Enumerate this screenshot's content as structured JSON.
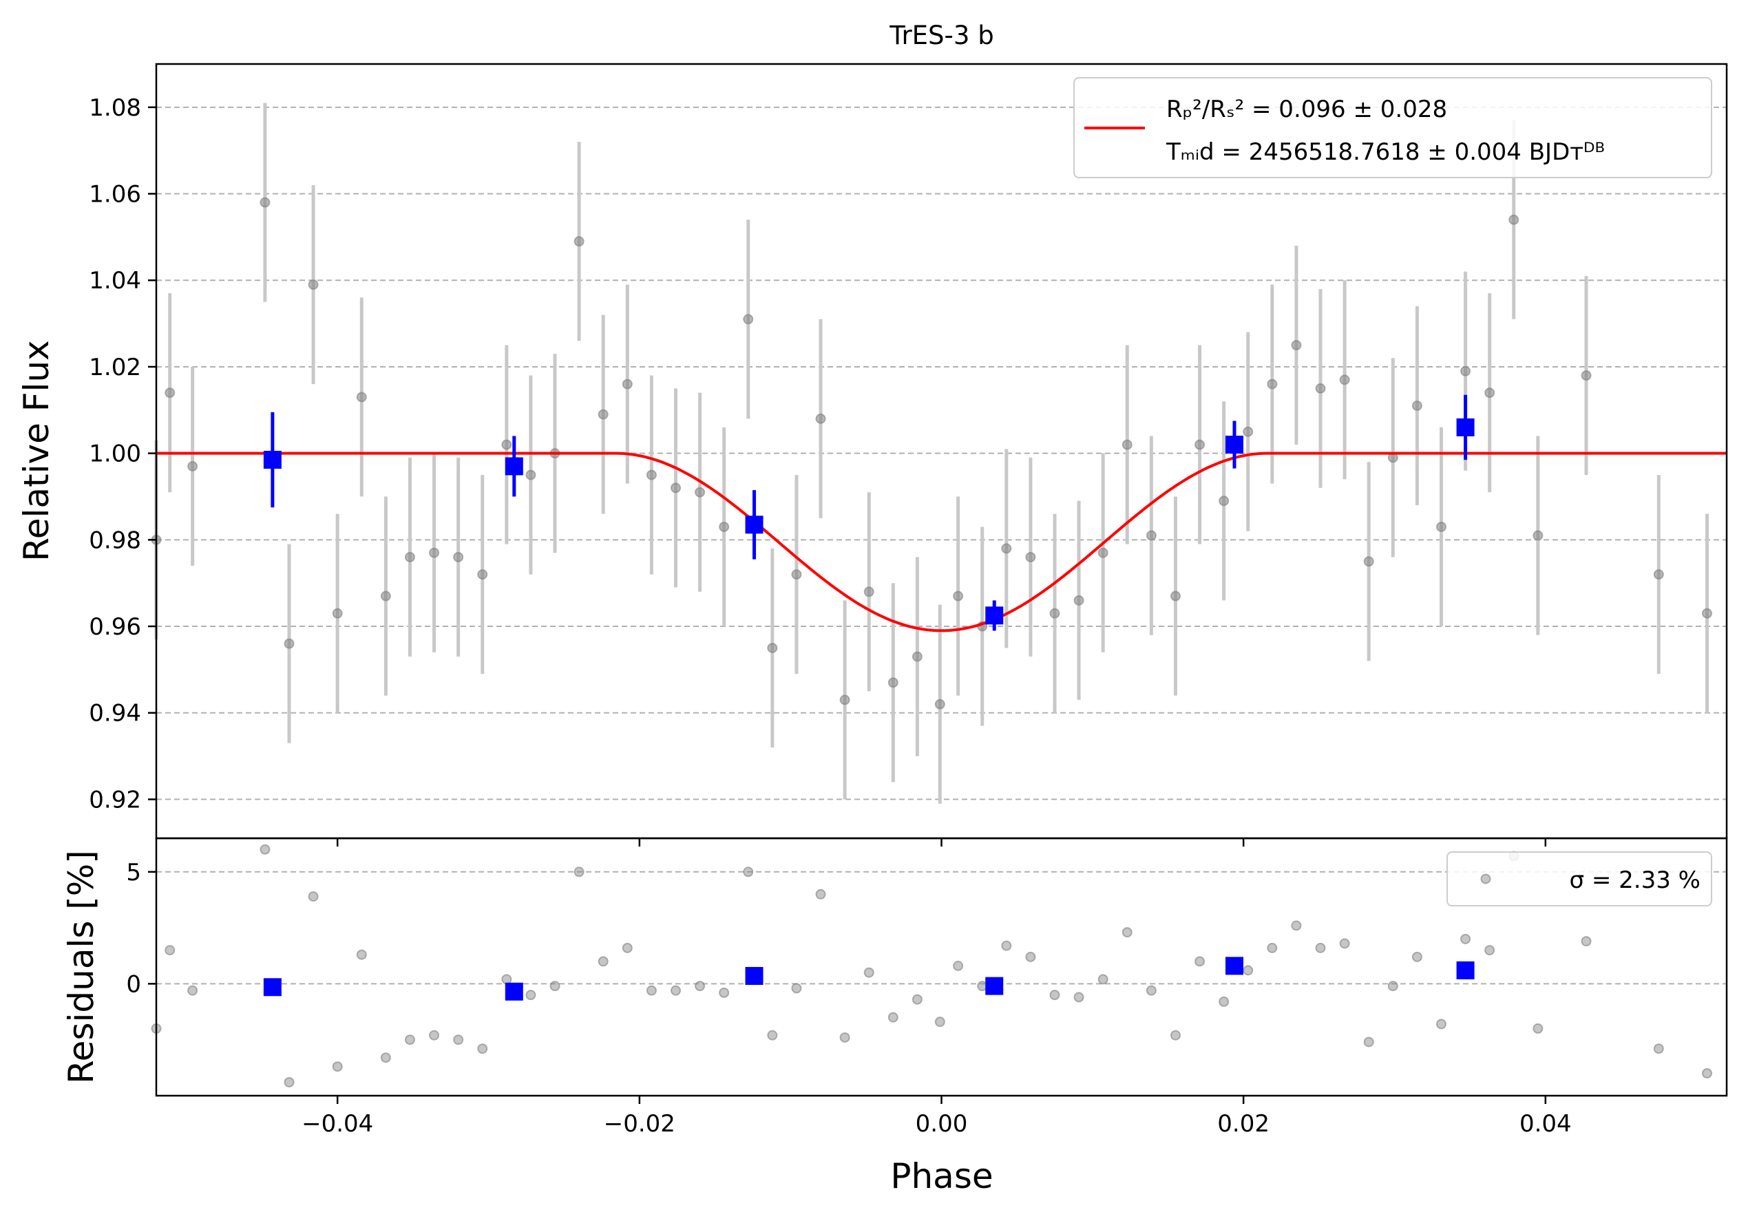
{
  "chart_data": {
    "type": "scatter",
    "title": "TrES-3 b",
    "xlabel": "Phase",
    "grid": "horizontal dashed",
    "xlim": [
      -0.052,
      0.052
    ],
    "x_ticks": [
      -0.04,
      -0.02,
      0.0,
      0.02,
      0.04
    ],
    "x_tick_labels": [
      "−0.04",
      "−0.02",
      "0.00",
      "0.02",
      "0.04"
    ],
    "top_panel": {
      "ylabel": "Relative Flux",
      "ylim": [
        0.911,
        1.09
      ],
      "y_ticks": [
        0.92,
        0.94,
        0.96,
        0.98,
        1.0,
        1.02,
        1.04,
        1.06,
        1.08
      ],
      "y_tick_labels": [
        "0.92",
        "0.94",
        "0.96",
        "0.98",
        "1.00",
        "1.02",
        "1.04",
        "1.06",
        "1.08"
      ],
      "legend": {
        "location": "top-right",
        "line_color": "#ff0000",
        "entry1_label": "Rₚ²/Rₛ² = 0.096 ± 0.028",
        "entry2_label": "Tₘᵢd = 2456518.7618 ± 0.004 BJDᴛᴰᴮ"
      },
      "series": [
        {
          "kind": "raw",
          "color": "#808080",
          "error_color": "#c8c8c8",
          "x": [
            -0.052,
            -0.0511,
            -0.0496,
            -0.0448,
            -0.0432,
            -0.0416,
            -0.04,
            -0.0384,
            -0.0368,
            -0.0352,
            -0.0336,
            -0.032,
            -0.0304,
            -0.0288,
            -0.0272,
            -0.0256,
            -0.024,
            -0.0224,
            -0.0208,
            -0.0192,
            -0.0176,
            -0.016,
            -0.0144,
            -0.0128,
            -0.0112,
            -0.0096,
            -0.008,
            -0.0064,
            -0.0048,
            -0.0032,
            -0.0016,
            -0.0001,
            0.0011,
            0.0027,
            0.0043,
            0.0059,
            0.0075,
            0.0091,
            0.0107,
            0.0123,
            0.0139,
            0.0155,
            0.0171,
            0.0187,
            0.0203,
            0.0219,
            0.0235,
            0.0251,
            0.0267,
            0.0283,
            0.0299,
            0.0315,
            0.0331,
            0.0347,
            0.0363,
            0.0379,
            0.0395,
            0.0427,
            0.0475,
            0.0507,
            0.0522
          ],
          "y": [
            0.98,
            1.014,
            0.997,
            1.058,
            0.956,
            1.039,
            0.963,
            1.013,
            0.967,
            0.976,
            0.977,
            0.976,
            0.972,
            1.002,
            0.995,
            1.0,
            1.049,
            1.009,
            1.016,
            0.995,
            0.992,
            0.991,
            0.983,
            1.031,
            0.955,
            0.972,
            1.008,
            0.943,
            0.968,
            0.947,
            0.953,
            0.942,
            0.967,
            0.96,
            0.978,
            0.976,
            0.963,
            0.966,
            0.977,
            1.002,
            0.981,
            0.967,
            1.002,
            0.989,
            1.005,
            1.016,
            1.025,
            1.015,
            1.017,
            0.975,
            0.999,
            1.011,
            0.983,
            1.019,
            1.014,
            1.054,
            0.981,
            1.018,
            0.972,
            0.963,
            0.972
          ],
          "error": 0.023
        },
        {
          "kind": "binned",
          "color": "#0000ff",
          "x": [
            -0.0443,
            -0.0283,
            -0.0124,
            0.0035,
            0.0194,
            0.0347
          ],
          "y": [
            0.9985,
            0.997,
            0.9835,
            0.9625,
            1.002,
            1.006
          ],
          "error": [
            0.011,
            0.007,
            0.008,
            0.0035,
            0.0055,
            0.0075
          ]
        },
        {
          "kind": "model",
          "color": "#ff0000",
          "baseline": 1.0,
          "min": 0.959,
          "ingress_start": -0.0216,
          "egress_end": 0.0216
        }
      ]
    },
    "bottom_panel": {
      "ylabel": "Residuals [%]",
      "ylim": [
        -5.0,
        6.5
      ],
      "y_ticks": [
        0,
        5
      ],
      "y_tick_labels": [
        "0",
        "5"
      ],
      "legend": {
        "location": "top-right",
        "label": "σ = 2.33 %"
      },
      "series": [
        {
          "kind": "raw",
          "color": "#808080",
          "x": [
            -0.052,
            -0.0511,
            -0.0496,
            -0.0448,
            -0.0432,
            -0.0416,
            -0.04,
            -0.0384,
            -0.0368,
            -0.0352,
            -0.0336,
            -0.032,
            -0.0304,
            -0.0288,
            -0.0272,
            -0.0256,
            -0.024,
            -0.0224,
            -0.0208,
            -0.0192,
            -0.0176,
            -0.016,
            -0.0144,
            -0.0128,
            -0.0112,
            -0.0096,
            -0.008,
            -0.0064,
            -0.0048,
            -0.0032,
            -0.0016,
            -0.0001,
            0.0011,
            0.0027,
            0.0043,
            0.0059,
            0.0075,
            0.0091,
            0.0107,
            0.0123,
            0.0139,
            0.0155,
            0.0171,
            0.0187,
            0.0203,
            0.0219,
            0.0235,
            0.0251,
            0.0267,
            0.0283,
            0.0299,
            0.0315,
            0.0331,
            0.0347,
            0.0363,
            0.0379,
            0.0395,
            0.0427,
            0.0475,
            0.0507,
            0.0522
          ],
          "y": [
            -2.0,
            1.5,
            -0.3,
            6.0,
            -4.4,
            3.9,
            -3.7,
            1.3,
            -3.3,
            -2.5,
            -2.3,
            -2.5,
            -2.9,
            0.2,
            -0.5,
            -0.1,
            5.0,
            1.0,
            1.6,
            -0.3,
            -0.3,
            -0.1,
            -0.4,
            5.0,
            -2.3,
            -0.2,
            4.0,
            -2.4,
            0.5,
            -1.5,
            -0.7,
            -1.7,
            0.8,
            -0.1,
            1.7,
            1.2,
            -0.5,
            -0.6,
            0.2,
            2.3,
            -0.3,
            -2.3,
            1.0,
            -0.8,
            0.6,
            1.6,
            2.6,
            1.6,
            1.8,
            -2.6,
            -0.1,
            1.2,
            -1.8,
            2.0,
            1.5,
            5.7,
            -2.0,
            1.9,
            -2.9,
            -4.0,
            -2.9
          ]
        },
        {
          "kind": "binned",
          "color": "#0000ff",
          "x": [
            -0.0443,
            -0.0283,
            -0.0124,
            0.0035,
            0.0194,
            0.0347
          ],
          "y": [
            -0.15,
            -0.35,
            0.35,
            -0.1,
            0.8,
            0.6
          ]
        }
      ]
    }
  }
}
